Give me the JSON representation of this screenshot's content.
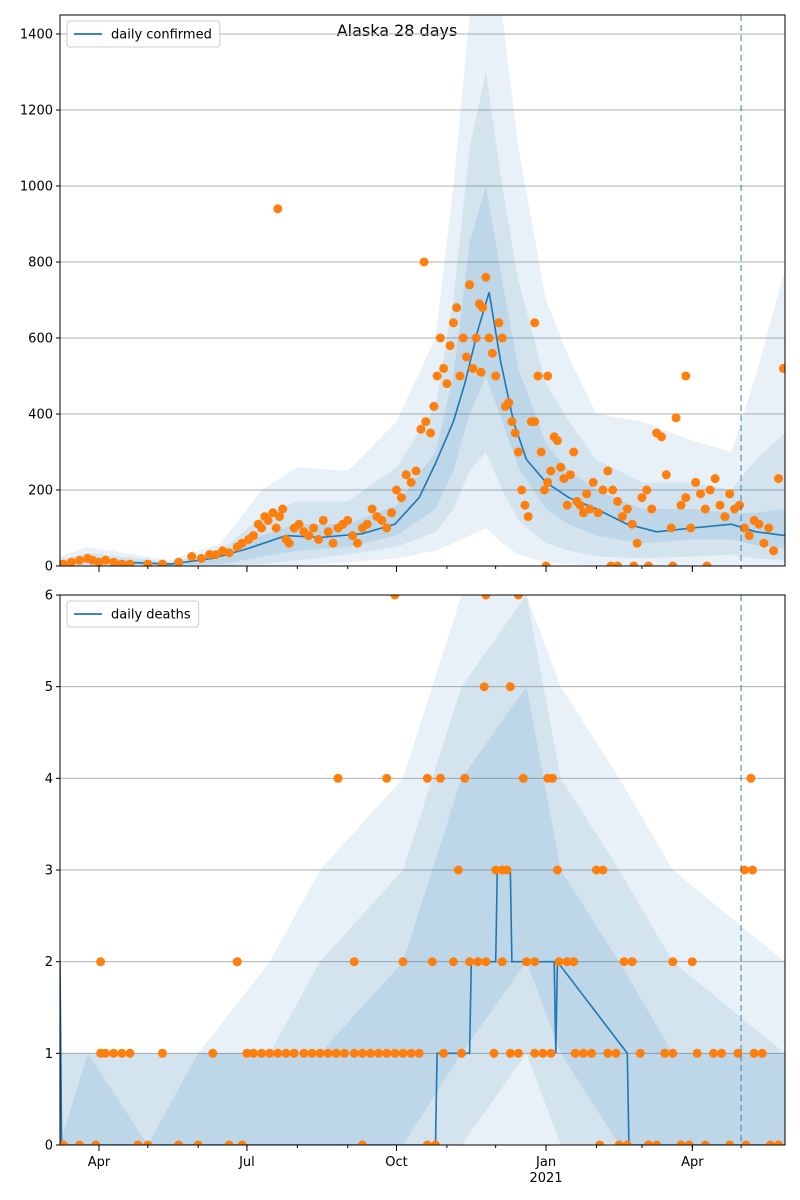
{
  "title": "Alaska 28 days",
  "colors": {
    "line": "#1f77b4",
    "points": "#ff7f0e",
    "band": "#1f77b4",
    "grid": "#b0b0b0",
    "vline": "#1f77b4"
  },
  "chart_data": [
    {
      "type": "line",
      "legend": "daily confirmed",
      "legend_position": "top-left",
      "grid": "horizontal",
      "ylim": [
        0,
        1450
      ],
      "yticks": [
        0,
        200,
        400,
        600,
        800,
        1000,
        1200,
        1400
      ],
      "ytick_labels": [
        "0",
        "200",
        "400",
        "600",
        "800",
        "1000",
        "1200",
        "1400"
      ],
      "xlim": [
        "2020-03-08",
        "2021-05-28"
      ],
      "forecast_start": "2021-05-01",
      "line_x": [
        "2020-03-08",
        "2020-03-25",
        "2020-04-15",
        "2020-05-15",
        "2020-06-10",
        "2020-07-01",
        "2020-07-25",
        "2020-08-15",
        "2020-09-10",
        "2020-09-30",
        "2020-10-15",
        "2020-10-25",
        "2020-11-05",
        "2020-11-12",
        "2020-11-20",
        "2020-11-27",
        "2020-12-04",
        "2020-12-12",
        "2020-12-20",
        "2021-01-01",
        "2021-01-15",
        "2021-02-01",
        "2021-02-20",
        "2021-03-10",
        "2021-04-01",
        "2021-04-25",
        "2021-05-10",
        "2021-05-28"
      ],
      "line_y": [
        5,
        20,
        10,
        5,
        20,
        45,
        80,
        75,
        85,
        110,
        180,
        270,
        380,
        480,
        620,
        720,
        540,
        380,
        280,
        220,
        180,
        150,
        110,
        90,
        100,
        110,
        90,
        80
      ],
      "bands": [
        {
          "x": [
            "2020-03-08",
            "2020-03-25",
            "2020-05-15",
            "2020-06-15",
            "2020-07-10",
            "2020-08-01",
            "2020-09-01",
            "2020-10-01",
            "2020-10-25",
            "2020-11-05",
            "2020-11-15",
            "2020-11-25",
            "2020-12-05",
            "2020-12-15",
            "2021-01-01",
            "2021-01-15",
            "2021-02-01",
            "2021-03-01",
            "2021-04-01",
            "2021-04-25",
            "2021-05-10",
            "2021-05-28"
          ],
          "lower": [
            0,
            0,
            0,
            0,
            0,
            0,
            10,
            20,
            40,
            60,
            80,
            100,
            60,
            30,
            10,
            5,
            0,
            0,
            0,
            0,
            0,
            0
          ],
          "upper": [
            25,
            50,
            15,
            60,
            200,
            260,
            250,
            380,
            600,
            1000,
            1450,
            1450,
            1450,
            1100,
            700,
            550,
            400,
            380,
            330,
            300,
            500,
            780
          ]
        },
        {
          "x": [
            "2020-03-08",
            "2020-03-25",
            "2020-05-15",
            "2020-06-15",
            "2020-07-10",
            "2020-08-01",
            "2020-09-01",
            "2020-10-01",
            "2020-10-25",
            "2020-11-05",
            "2020-11-15",
            "2020-11-25",
            "2020-12-05",
            "2020-12-15",
            "2021-01-01",
            "2021-01-15",
            "2021-02-01",
            "2021-03-01",
            "2021-04-01",
            "2021-04-25",
            "2021-05-10",
            "2021-05-28"
          ],
          "lower": [
            0,
            0,
            0,
            0,
            5,
            15,
            30,
            50,
            90,
            150,
            250,
            300,
            200,
            120,
            60,
            40,
            25,
            20,
            25,
            30,
            20,
            15
          ],
          "upper": [
            15,
            35,
            10,
            40,
            130,
            170,
            170,
            260,
            420,
            700,
            1100,
            1300,
            1000,
            750,
            480,
            380,
            280,
            220,
            220,
            200,
            280,
            350
          ]
        },
        {
          "x": [
            "2020-03-08",
            "2020-03-25",
            "2020-05-15",
            "2020-06-15",
            "2020-07-10",
            "2020-08-01",
            "2020-09-01",
            "2020-10-01",
            "2020-10-25",
            "2020-11-05",
            "2020-11-15",
            "2020-11-25",
            "2020-12-05",
            "2020-12-15",
            "2021-01-01",
            "2021-01-15",
            "2021-02-01",
            "2021-03-01",
            "2021-04-01",
            "2021-04-25",
            "2021-05-10",
            "2021-05-28"
          ],
          "lower": [
            2,
            8,
            2,
            5,
            25,
            40,
            50,
            80,
            150,
            250,
            400,
            500,
            380,
            260,
            150,
            110,
            80,
            60,
            70,
            70,
            55,
            45
          ],
          "upper": [
            8,
            25,
            6,
            25,
            80,
            110,
            110,
            160,
            300,
            500,
            850,
            1000,
            750,
            520,
            320,
            250,
            200,
            150,
            150,
            140,
            140,
            150
          ]
        }
      ],
      "points_x": [
        "2020-03-10",
        "2020-03-15",
        "2020-03-20",
        "2020-03-25",
        "2020-03-28",
        "2020-04-01",
        "2020-04-05",
        "2020-04-10",
        "2020-04-15",
        "2020-04-20",
        "2020-05-01",
        "2020-05-10",
        "2020-05-20",
        "2020-05-28",
        "2020-06-03",
        "2020-06-08",
        "2020-06-12",
        "2020-06-16",
        "2020-06-20",
        "2020-06-25",
        "2020-06-28",
        "2020-07-02",
        "2020-07-05",
        "2020-07-08",
        "2020-07-10",
        "2020-07-12",
        "2020-07-14",
        "2020-07-17",
        "2020-07-19",
        "2020-07-21",
        "2020-07-23",
        "2020-07-25",
        "2020-07-27",
        "2020-07-30",
        "2020-08-02",
        "2020-08-05",
        "2020-08-08",
        "2020-08-11",
        "2020-08-14",
        "2020-08-17",
        "2020-08-20",
        "2020-08-23",
        "2020-08-26",
        "2020-08-29",
        "2020-09-01",
        "2020-09-04",
        "2020-09-07",
        "2020-09-10",
        "2020-09-13",
        "2020-09-16",
        "2020-09-19",
        "2020-09-22",
        "2020-09-25",
        "2020-09-28",
        "2020-10-01",
        "2020-10-04",
        "2020-10-07",
        "2020-10-10",
        "2020-10-13",
        "2020-10-16",
        "2020-10-19",
        "2020-10-22",
        "2020-10-24",
        "2020-10-26",
        "2020-10-28",
        "2020-10-30",
        "2020-11-01",
        "2020-11-03",
        "2020-11-05",
        "2020-11-07",
        "2020-11-09",
        "2020-11-11",
        "2020-11-13",
        "2020-11-15",
        "2020-11-17",
        "2020-11-19",
        "2020-11-21",
        "2020-11-23",
        "2020-11-25",
        "2020-11-27",
        "2020-11-29",
        "2020-12-01",
        "2020-12-03",
        "2020-12-05",
        "2020-12-07",
        "2020-12-09",
        "2020-12-11",
        "2020-12-13",
        "2020-12-15",
        "2020-12-17",
        "2020-12-19",
        "2020-12-21",
        "2020-12-23",
        "2020-12-25",
        "2020-12-27",
        "2020-12-29",
        "2020-12-31",
        "2021-01-02",
        "2021-01-04",
        "2021-01-06",
        "2021-01-08",
        "2021-01-10",
        "2021-01-12",
        "2021-01-14",
        "2021-01-16",
        "2021-01-18",
        "2021-01-20",
        "2021-01-22",
        "2021-01-24",
        "2021-01-26",
        "2021-01-28",
        "2021-01-30",
        "2021-02-02",
        "2021-02-05",
        "2021-02-08",
        "2021-02-11",
        "2021-02-14",
        "2021-02-17",
        "2021-02-20",
        "2021-02-23",
        "2021-02-26",
        "2021-03-01",
        "2021-03-04",
        "2021-03-07",
        "2021-03-10",
        "2021-03-13",
        "2021-03-16",
        "2021-03-19",
        "2021-03-22",
        "2021-03-25",
        "2021-03-28",
        "2021-03-31",
        "2021-04-03",
        "2021-04-06",
        "2021-04-09",
        "2021-04-12",
        "2021-04-15",
        "2021-04-18",
        "2021-04-21",
        "2021-04-24",
        "2021-04-27",
        "2021-04-30",
        "2021-05-03",
        "2021-05-06",
        "2021-05-09",
        "2021-05-12",
        "2021-05-15",
        "2021-05-18",
        "2021-05-21",
        "2021-05-24",
        "2021-05-27",
        "2020-07-20",
        "2020-10-18",
        "2020-11-22",
        "2020-12-25",
        "2021-01-02",
        "2021-03-28",
        "2021-02-14",
        "2021-02-24",
        "2021-01-01",
        "2021-02-10",
        "2021-03-05",
        "2021-03-20",
        "2021-04-10",
        "2021-05-05",
        "2021-05-20"
      ],
      "points_y": [
        5,
        10,
        15,
        20,
        15,
        10,
        15,
        10,
        5,
        5,
        5,
        5,
        10,
        25,
        20,
        30,
        30,
        40,
        35,
        50,
        60,
        70,
        80,
        110,
        100,
        130,
        120,
        140,
        100,
        130,
        150,
        70,
        60,
        100,
        110,
        90,
        80,
        100,
        70,
        120,
        90,
        60,
        100,
        110,
        120,
        80,
        60,
        100,
        110,
        150,
        130,
        120,
        100,
        140,
        200,
        180,
        240,
        220,
        250,
        360,
        380,
        350,
        420,
        500,
        600,
        520,
        480,
        580,
        640,
        680,
        500,
        600,
        550,
        740,
        520,
        600,
        690,
        680,
        760,
        600,
        560,
        500,
        640,
        600,
        420,
        430,
        380,
        350,
        300,
        200,
        160,
        130,
        380,
        380,
        500,
        300,
        200,
        220,
        250,
        340,
        330,
        260,
        230,
        160,
        240,
        300,
        170,
        160,
        140,
        190,
        150,
        220,
        140,
        200,
        250,
        200,
        170,
        130,
        150,
        110,
        60,
        180,
        200,
        150,
        350,
        340,
        240,
        100,
        390,
        160,
        180,
        100,
        220,
        190,
        150,
        200,
        230,
        160,
        130,
        190,
        150,
        160,
        100,
        80,
        120,
        110,
        60,
        100,
        40,
        230,
        520,
        940,
        800,
        510,
        640,
        500,
        500,
        0,
        0,
        0,
        0,
        0,
        0,
        0
      ]
    },
    {
      "type": "line",
      "legend": "daily deaths",
      "legend_position": "top-left",
      "grid": "horizontal",
      "ylim": [
        0,
        6
      ],
      "yticks": [
        0,
        1,
        2,
        3,
        4,
        5,
        6
      ],
      "ytick_labels": [
        "0",
        "1",
        "2",
        "3",
        "4",
        "5",
        "6"
      ],
      "xlim": [
        "2020-03-08",
        "2021-05-28"
      ],
      "forecast_start": "2021-05-01",
      "xtick_labels": [
        "Apr",
        "Jul",
        "Oct",
        "Jan",
        "Apr"
      ],
      "xtick_dates": [
        "2020-04-01",
        "2020-07-01",
        "2020-10-01",
        "2021-01-01",
        "2021-04-01"
      ],
      "year_label": "2021",
      "line_x": [
        "2020-03-08",
        "2020-03-09",
        "2020-10-25",
        "2020-10-26",
        "2020-11-15",
        "2020-11-16",
        "2020-12-01",
        "2020-12-02",
        "2020-12-10",
        "2020-12-11",
        "2021-01-06",
        "2021-01-07",
        "2021-01-08",
        "2021-02-20",
        "2021-02-21",
        "2021-05-28"
      ],
      "line_y": [
        2,
        0,
        0,
        1,
        1,
        2,
        2,
        3,
        3,
        2,
        2,
        1,
        2,
        1,
        0,
        0
      ],
      "bands": [
        {
          "x": [
            "2020-03-08",
            "2020-03-25",
            "2020-05-01",
            "2020-06-01",
            "2020-07-15",
            "2020-08-15",
            "2020-10-05",
            "2020-11-10",
            "2020-12-20",
            "2021-01-10",
            "2021-02-15",
            "2021-03-20",
            "2021-05-28"
          ],
          "lower": [
            0,
            0,
            0,
            0,
            0,
            0,
            0,
            0,
            0,
            0,
            0,
            0,
            0
          ],
          "upper": [
            1,
            1,
            1,
            1,
            2,
            3,
            4,
            6,
            6,
            5,
            4,
            3,
            2
          ]
        },
        {
          "x": [
            "2020-03-08",
            "2020-03-25",
            "2020-05-01",
            "2020-06-01",
            "2020-07-15",
            "2020-08-15",
            "2020-10-05",
            "2020-11-10",
            "2020-12-20",
            "2021-01-10",
            "2021-02-15",
            "2021-03-20",
            "2021-05-28"
          ],
          "lower": [
            0,
            0,
            0,
            0,
            0,
            0,
            0,
            0,
            1,
            0,
            0,
            0,
            0
          ],
          "upper": [
            1,
            1,
            1,
            1,
            1,
            2,
            3,
            5,
            6,
            4,
            3,
            2,
            1
          ]
        },
        {
          "x": [
            "2020-03-08",
            "2020-03-25",
            "2020-05-01",
            "2020-06-01",
            "2020-07-15",
            "2020-08-15",
            "2020-10-05",
            "2020-11-10",
            "2020-12-20",
            "2021-01-10",
            "2021-02-15",
            "2021-03-20",
            "2021-05-28"
          ],
          "lower": [
            0,
            0,
            0,
            0,
            0,
            0,
            0,
            1,
            2,
            1,
            0,
            0,
            0
          ],
          "upper": [
            0,
            1,
            0,
            1,
            1,
            1,
            2,
            4,
            5,
            3,
            2,
            1,
            1
          ]
        }
      ],
      "points_x": [
        "2020-03-10",
        "2020-03-20",
        "2020-03-30",
        "2020-04-02",
        "2020-04-05",
        "2020-04-10",
        "2020-04-15",
        "2020-04-20",
        "2020-04-25",
        "2020-05-01",
        "2020-05-10",
        "2020-05-20",
        "2020-06-01",
        "2020-06-10",
        "2020-06-20",
        "2020-06-25",
        "2020-06-28",
        "2020-07-01",
        "2020-07-05",
        "2020-07-10",
        "2020-07-15",
        "2020-07-20",
        "2020-07-25",
        "2020-07-30",
        "2020-08-05",
        "2020-08-10",
        "2020-08-15",
        "2020-08-20",
        "2020-08-25",
        "2020-08-30",
        "2020-09-05",
        "2020-09-10",
        "2020-09-15",
        "2020-09-20",
        "2020-09-25",
        "2020-09-30",
        "2020-10-05",
        "2020-10-10",
        "2020-10-15",
        "2020-10-20",
        "2020-10-25",
        "2020-10-30",
        "2020-11-05",
        "2020-11-10",
        "2020-11-15",
        "2020-11-20",
        "2020-11-25",
        "2020-11-30",
        "2020-12-05",
        "2020-12-10",
        "2020-12-15",
        "2020-12-20",
        "2020-12-25",
        "2020-12-30",
        "2021-01-04",
        "2021-01-09",
        "2021-01-14",
        "2021-01-19",
        "2021-01-24",
        "2021-01-29",
        "2021-02-03",
        "2021-02-08",
        "2021-02-13",
        "2021-02-18",
        "2021-02-23",
        "2021-02-28",
        "2021-03-05",
        "2021-03-10",
        "2021-03-15",
        "2021-03-20",
        "2021-03-25",
        "2021-03-30",
        "2021-04-04",
        "2021-04-09",
        "2021-04-14",
        "2021-04-19",
        "2021-04-24",
        "2021-04-29",
        "2021-05-04",
        "2021-05-09",
        "2021-05-14",
        "2021-05-19",
        "2021-05-24",
        "2020-04-02",
        "2020-08-26",
        "2020-09-25",
        "2020-09-30",
        "2020-10-20",
        "2020-10-28",
        "2020-11-12",
        "2020-11-24",
        "2020-12-15",
        "2020-12-10",
        "2020-12-05",
        "2021-01-02",
        "2021-01-05",
        "2021-05-03",
        "2021-05-07",
        "2021-05-08",
        "2020-06-25",
        "2020-10-05",
        "2020-10-23",
        "2020-11-08",
        "2020-11-25",
        "2020-12-01",
        "2020-12-08",
        "2020-12-18",
        "2021-01-08",
        "2021-02-01",
        "2021-02-05",
        "2021-03-20",
        "2021-04-01",
        "2020-12-25",
        "2021-01-18",
        "2021-02-15",
        "2021-02-20",
        "2021-03-05",
        "2020-09-10",
        "2020-09-05"
      ],
      "points_y": [
        0,
        0,
        0,
        1,
        1,
        1,
        1,
        1,
        0,
        0,
        1,
        0,
        0,
        1,
        0,
        2,
        0,
        1,
        1,
        1,
        1,
        1,
        1,
        1,
        1,
        1,
        1,
        1,
        1,
        1,
        1,
        1,
        1,
        1,
        1,
        1,
        1,
        1,
        1,
        0,
        0,
        1,
        2,
        1,
        2,
        2,
        2,
        1,
        2,
        1,
        1,
        2,
        1,
        1,
        1,
        2,
        2,
        1,
        1,
        1,
        0,
        1,
        1,
        2,
        2,
        1,
        0,
        0,
        1,
        1,
        0,
        0,
        1,
        0,
        1,
        1,
        0,
        1,
        0,
        1,
        1,
        0,
        0,
        2,
        4,
        4,
        6,
        4,
        4,
        4,
        5,
        6,
        5,
        3,
        4,
        4,
        3,
        4,
        3,
        2,
        2,
        2,
        3,
        6,
        3,
        3,
        4,
        3,
        3,
        3,
        2,
        2,
        2,
        2,
        0,
        0,
        0,
        0,
        2,
        2
      ]
    }
  ]
}
